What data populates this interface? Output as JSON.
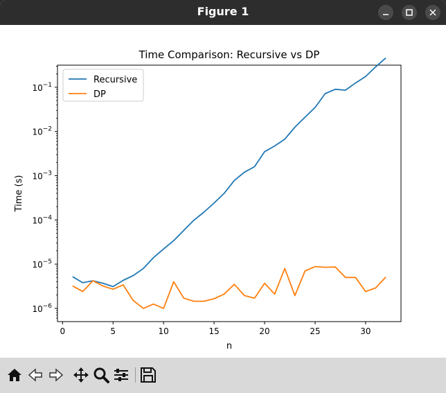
{
  "window": {
    "title": "Figure 1"
  },
  "toolbar": {
    "icons": [
      "home-icon",
      "back-icon",
      "forward-icon",
      "pan-icon",
      "zoom-icon",
      "configure-subplots-icon",
      "save-icon"
    ]
  },
  "chart_data": {
    "type": "line",
    "title": "Time Comparison: Recursive vs DP",
    "xlabel": "n",
    "ylabel": "Time (s)",
    "xlim": [
      -0.5,
      33.5
    ],
    "ylim_log10": [
      -6.3,
      -0.5
    ],
    "yscale": "log",
    "x_ticks": [
      0,
      5,
      10,
      15,
      20,
      25,
      30
    ],
    "y_ticks": [
      {
        "base": "10",
        "exp": "−6",
        "value": -6
      },
      {
        "base": "10",
        "exp": "−5",
        "value": -5
      },
      {
        "base": "10",
        "exp": "−4",
        "value": -4
      },
      {
        "base": "10",
        "exp": "−3",
        "value": -3
      },
      {
        "base": "10",
        "exp": "−2",
        "value": -2
      },
      {
        "base": "10",
        "exp": "−1",
        "value": -1
      }
    ],
    "legend_position": "upper-left",
    "x": [
      1,
      2,
      3,
      4,
      5,
      6,
      7,
      8,
      9,
      10,
      11,
      12,
      13,
      14,
      15,
      16,
      17,
      18,
      19,
      20,
      21,
      22,
      23,
      24,
      25,
      26,
      27,
      28,
      29,
      30,
      31,
      32
    ],
    "series": [
      {
        "name": "Recursive",
        "color": "#1f77b4",
        "values": [
          5.2e-06,
          3.8e-06,
          4.2e-06,
          3.7e-06,
          3.1e-06,
          4.3e-06,
          5.5e-06,
          8e-06,
          1.4e-05,
          2.2e-05,
          3.4e-05,
          5.8e-05,
          9.8e-05,
          0.00015,
          0.00024,
          0.0004,
          0.00078,
          0.0012,
          0.0016,
          0.0035,
          0.0047,
          0.0067,
          0.0125,
          0.021,
          0.035,
          0.072,
          0.09,
          0.086,
          0.125,
          0.175,
          0.29,
          0.46
        ]
      },
      {
        "name": "DP",
        "color": "#ff7f0e",
        "values": [
          3.2e-06,
          2.4e-06,
          4.2e-06,
          3.2e-06,
          2.7e-06,
          3.4e-06,
          1.5e-06,
          1e-06,
          1.25e-06,
          1e-06,
          4e-06,
          1.7e-06,
          1.45e-06,
          1.45e-06,
          1.65e-06,
          2.1e-06,
          3.5e-06,
          1.95e-06,
          1.7e-06,
          3.7e-06,
          2.1e-06,
          8e-06,
          1.95e-06,
          7e-06,
          8.8e-06,
          8.5e-06,
          8.6e-06,
          5e-06,
          5e-06,
          2.4e-06,
          2.9e-06,
          5.1e-06
        ]
      }
    ]
  }
}
